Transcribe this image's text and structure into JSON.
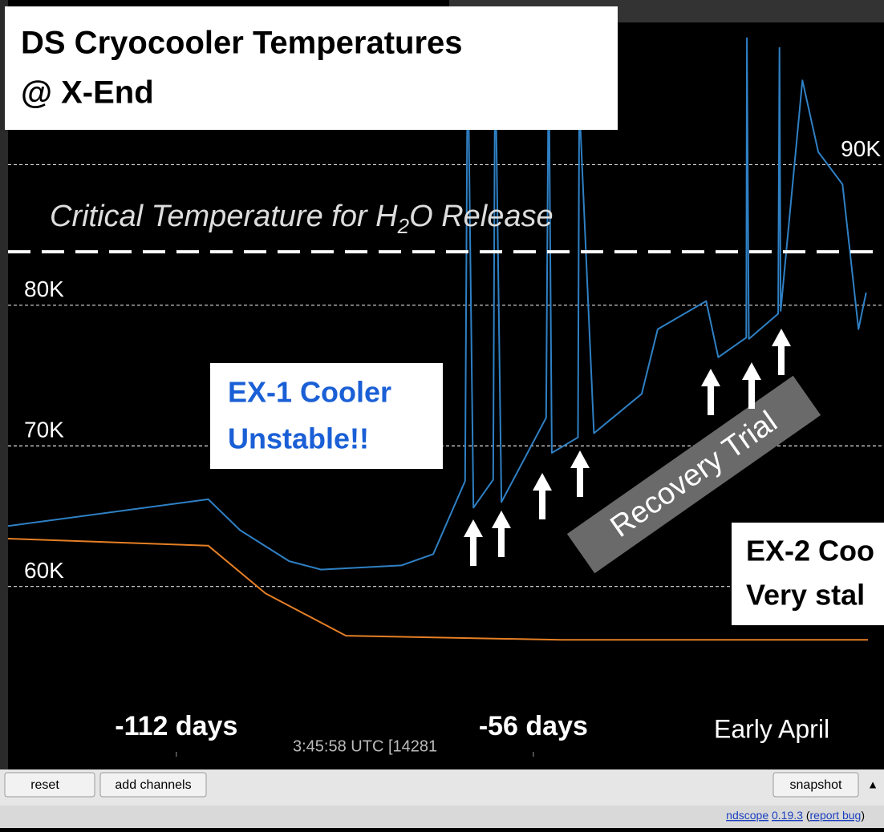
{
  "chart_data": {
    "type": "line",
    "title": [
      "DS Cryocooler Temperatures",
      "@ X-End"
    ],
    "xlim": [
      -138.4,
      -1
    ],
    "xticks": [
      {
        "value": -112,
        "label": "-112 days"
      },
      {
        "value": -56,
        "label": "-56 days"
      }
    ],
    "ylim": [
      52,
      100
    ],
    "yticks": [
      {
        "value": 60,
        "label": "60K"
      },
      {
        "value": 70,
        "label": "70K"
      },
      {
        "value": 80,
        "label": "80K"
      },
      {
        "value": 90,
        "label": "90K"
      }
    ],
    "grid": true,
    "threshold": {
      "value": 83.8,
      "label": [
        "Critical Temperature for H",
        "2",
        "O Release"
      ]
    },
    "series": [
      {
        "color": "#2f80c4",
        "x": [
          -138.4,
          -107,
          -102,
          -94.3,
          -89.3,
          -76.7,
          -71.7,
          -66.7,
          -66.3,
          -65.4,
          -62.3,
          -62.0,
          -61,
          -54,
          -53.6,
          -53.1,
          -49,
          -48.8,
          -46.5,
          -39,
          -36.5,
          -28.9,
          -27,
          -22.6,
          -22.5,
          -22.2,
          -17.6,
          -17.4,
          -17.2,
          -13.8,
          -11.3,
          -7.5,
          -5,
          -3.8
        ],
        "values": [
          64.3,
          66.2,
          64.0,
          61.8,
          61.2,
          61.5,
          62.3,
          67.5,
          99,
          65.6,
          67.6,
          98.5,
          66.0,
          72.0,
          98.5,
          69.5,
          70.6,
          94.5,
          70.9,
          73.7,
          78.3,
          80.3,
          76.3,
          77.7,
          99,
          77.6,
          79.4,
          98.3,
          79.6,
          96.0,
          90.9,
          88.6,
          78.3,
          80.9
        ]
      },
      {
        "color": "#e57f25",
        "x": [
          -138.4,
          -107,
          -98,
          -85.4,
          -51.6,
          -3.5
        ],
        "values": [
          63.4,
          62.9,
          59.5,
          56.5,
          56.2,
          56.2
        ]
      }
    ],
    "annotations": {
      "ex1": [
        "EX-1 Cooler",
        "Unstable!!"
      ],
      "ex2": [
        "EX-2 Coo",
        "Very stal"
      ],
      "recovery": "Recovery Trial",
      "period": "Early April",
      "timestamp": "3:45:58 UTC [14281"
    },
    "toolbar": {
      "buttons": [
        "reset",
        "add channels"
      ],
      "snapshot": "snapshot",
      "menu": "▲"
    },
    "status": {
      "app": "ndscope",
      "version": "0.19.3",
      "open": "(",
      "link": "report bug",
      "close": ")"
    }
  }
}
